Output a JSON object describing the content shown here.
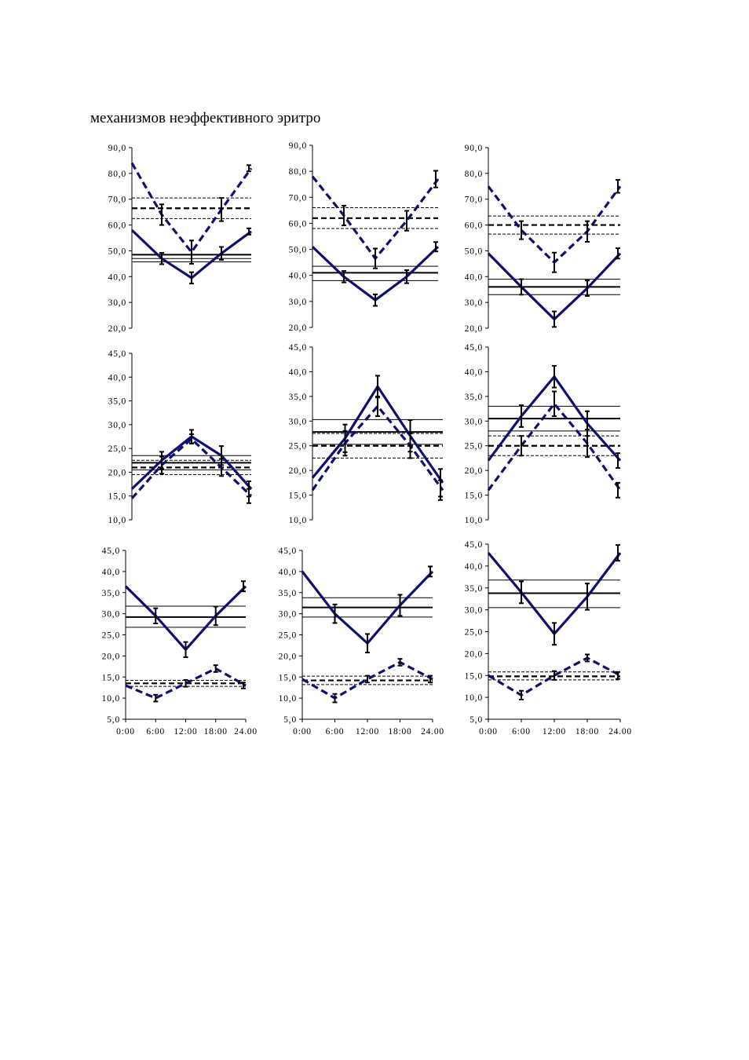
{
  "caption": "механизмов неэффективного эритро",
  "colors": {
    "series": "#0f0f6e",
    "reference": "#000000",
    "errorbar": "#000000"
  },
  "chart_data": [
    {
      "type": "line",
      "xlim": [
        0,
        24
      ],
      "ylim": [
        20,
        90
      ],
      "yticks": [
        "20,0",
        "30,0",
        "40,0",
        "50,0",
        "60,0",
        "70,0",
        "80,0",
        "90,0"
      ],
      "series": [
        {
          "style": "solid",
          "x": [
            0,
            6,
            12,
            18,
            24
          ],
          "values": [
            58,
            47,
            39.5,
            49,
            57.5
          ],
          "errors": [
            0,
            2.2,
            2.2,
            2.5,
            1.2
          ]
        },
        {
          "style": "dashed",
          "x": [
            0,
            6,
            12,
            18,
            24
          ],
          "values": [
            84,
            64,
            49.5,
            66,
            82
          ],
          "errors": [
            0,
            4,
            4.5,
            4.5,
            1.2
          ]
        }
      ],
      "reference": {
        "solid": [
          48.5,
          1.5,
          2.8
        ],
        "dashed": [
          66.5,
          62.5,
          70.5
        ]
      }
    },
    {
      "type": "line",
      "xlim": [
        0,
        24
      ],
      "ylim": [
        20,
        90
      ],
      "yticks": [
        "20,0",
        "30,0",
        "40,0",
        "50,0",
        "60,0",
        "70,0",
        "80,0",
        "90,0"
      ],
      "series": [
        {
          "style": "solid",
          "x": [
            0,
            6,
            12,
            18,
            24
          ],
          "values": [
            51,
            39.5,
            30.5,
            39.5,
            51
          ],
          "errors": [
            0,
            2.2,
            2.2,
            2.5,
            1.8
          ]
        },
        {
          "style": "dashed",
          "x": [
            0,
            6,
            12,
            18,
            24
          ],
          "values": [
            78,
            63,
            46.5,
            61,
            77
          ],
          "errors": [
            0,
            3.8,
            3.8,
            3.8,
            3.2
          ]
        }
      ],
      "reference": {
        "solid": [
          41,
          38,
          43.5
        ],
        "dashed": [
          62,
          58,
          66
        ]
      }
    },
    {
      "type": "line",
      "xlim": [
        0,
        24
      ],
      "ylim": [
        20,
        90
      ],
      "yticks": [
        "20,0",
        "30,0",
        "40,0",
        "50,0",
        "60,0",
        "70,0",
        "80,0",
        "90,0"
      ],
      "series": [
        {
          "style": "solid",
          "x": [
            0,
            6,
            12,
            18,
            24
          ],
          "values": [
            49,
            36,
            23.5,
            35.5,
            49
          ],
          "errors": [
            0,
            3,
            3,
            3,
            2
          ]
        },
        {
          "style": "dashed",
          "x": [
            0,
            6,
            12,
            18,
            24
          ],
          "values": [
            75,
            58,
            45.5,
            57.5,
            75
          ],
          "errors": [
            0,
            3.5,
            3.8,
            4,
            2.5
          ]
        }
      ],
      "reference": {
        "solid": [
          36,
          33,
          39
        ],
        "dashed": [
          60,
          56.5,
          63.5
        ]
      }
    },
    {
      "type": "line",
      "xlim": [
        0,
        24
      ],
      "ylim": [
        10,
        45
      ],
      "yticks": [
        "10,0",
        "15,0",
        "20,0",
        "25,0",
        "30,0",
        "35,0",
        "40,0",
        "45,0"
      ],
      "series": [
        {
          "style": "solid",
          "x": [
            0,
            6,
            12,
            18,
            24
          ],
          "values": [
            16.5,
            22.5,
            27.5,
            23.5,
            16.5
          ],
          "errors": [
            0,
            1.8,
            1.4,
            2,
            1.6
          ]
        },
        {
          "style": "dashed",
          "x": [
            0,
            6,
            12,
            18,
            24
          ],
          "values": [
            14.5,
            21.5,
            27,
            21,
            15
          ],
          "errors": [
            0,
            1.8,
            1,
            1.8,
            1.5
          ]
        }
      ],
      "reference": {
        "solid": [
          22,
          20.5,
          23.5
        ],
        "dashed": [
          21,
          19.5,
          22.5
        ]
      }
    },
    {
      "type": "line",
      "xlim": [
        0,
        24
      ],
      "ylim": [
        10,
        45
      ],
      "yticks": [
        "10,0",
        "15,0",
        "20,0",
        "25,0",
        "30,0",
        "35,0",
        "40,0",
        "45,0"
      ],
      "series": [
        {
          "style": "solid",
          "x": [
            0,
            6,
            12,
            18,
            24
          ],
          "values": [
            18.5,
            26.5,
            37,
            27,
            17.5
          ],
          "errors": [
            0,
            2.8,
            2.2,
            3.2,
            2.8
          ]
        },
        {
          "style": "dashed",
          "x": [
            0,
            6,
            12,
            18,
            24
          ],
          "values": [
            16,
            25.5,
            33,
            25,
            16
          ],
          "errors": [
            0,
            2.5,
            2,
            2.5,
            2
          ]
        }
      ],
      "reference": {
        "solid": [
          27.8,
          25.3,
          30.3
        ],
        "dashed": [
          25,
          22.5,
          27.5
        ]
      }
    },
    {
      "type": "line",
      "xlim": [
        0,
        24
      ],
      "ylim": [
        10,
        45
      ],
      "yticks": [
        "10,0",
        "15,0",
        "20,0",
        "25,0",
        "30,0",
        "35,0",
        "40,0",
        "45,0"
      ],
      "series": [
        {
          "style": "solid",
          "x": [
            0,
            6,
            12,
            18,
            24
          ],
          "values": [
            22,
            31,
            39,
            29.5,
            22
          ],
          "errors": [
            0,
            2.2,
            2.2,
            2.5,
            1.5
          ]
        },
        {
          "style": "dashed",
          "x": [
            0,
            6,
            12,
            18,
            24
          ],
          "values": [
            16,
            25,
            33.5,
            25.5,
            16
          ],
          "errors": [
            0,
            2,
            2.5,
            2.8,
            1.5
          ]
        }
      ],
      "reference": {
        "solid": [
          30.5,
          28,
          33
        ],
        "dashed": [
          25,
          23,
          27
        ]
      }
    },
    {
      "type": "line",
      "xlim": [
        0,
        24
      ],
      "ylim": [
        5,
        45
      ],
      "yticks": [
        "5,0",
        "10,0",
        "15,0",
        "20,0",
        "25,0",
        "30,0",
        "35,0",
        "40,0",
        "45,0"
      ],
      "xticks": [
        "0:00",
        "6:00",
        "12:00",
        "18:00",
        "24.00"
      ],
      "series": [
        {
          "style": "solid",
          "x": [
            0,
            6,
            12,
            18,
            24
          ],
          "values": [
            36.5,
            29.5,
            21.5,
            29.5,
            36.5
          ],
          "errors": [
            0,
            1.8,
            1.8,
            2.2,
            1.2
          ]
        },
        {
          "style": "dashed",
          "x": [
            0,
            6,
            12,
            18,
            24
          ],
          "values": [
            13,
            10,
            13.5,
            17,
            13
          ],
          "errors": [
            0,
            0.8,
            0.8,
            0.8,
            0.7
          ]
        }
      ],
      "reference": {
        "solid": [
          29.2,
          26.8,
          31.8
        ],
        "dashed": [
          13.5,
          12.8,
          14.2
        ]
      }
    },
    {
      "type": "line",
      "xlim": [
        0,
        24
      ],
      "ylim": [
        5,
        45
      ],
      "yticks": [
        "5,0",
        "10,0",
        "15,0",
        "20,0",
        "25,0",
        "30,0",
        "35,0",
        "40,0",
        "45,0"
      ],
      "xticks": [
        "0:00",
        "6:00",
        "12:00",
        "18:00",
        "24.00"
      ],
      "series": [
        {
          "style": "solid",
          "x": [
            0,
            6,
            12,
            18,
            24
          ],
          "values": [
            40,
            30,
            23,
            32,
            40
          ],
          "errors": [
            0,
            2.2,
            2.2,
            2.5,
            1.2
          ]
        },
        {
          "style": "dashed",
          "x": [
            0,
            6,
            12,
            18,
            24
          ],
          "values": [
            14.5,
            10,
            14.5,
            18.5,
            14.5
          ],
          "errors": [
            0,
            1,
            0.8,
            0.8,
            0.8
          ]
        }
      ],
      "reference": {
        "solid": [
          31.5,
          29.2,
          33.8
        ],
        "dashed": [
          14.2,
          13.2,
          15.2
        ]
      }
    },
    {
      "type": "line",
      "xlim": [
        0,
        24
      ],
      "ylim": [
        5,
        45
      ],
      "yticks": [
        "5,0",
        "10,0",
        "15,0",
        "20,0",
        "25,0",
        "30,0",
        "35,0",
        "40,0",
        "45,0"
      ],
      "xticks": [
        "0:00",
        "6:00",
        "12:00",
        "18:00",
        "24.00"
      ],
      "series": [
        {
          "style": "solid",
          "x": [
            0,
            6,
            12,
            18,
            24
          ],
          "values": [
            43,
            34,
            24.5,
            33,
            43
          ],
          "errors": [
            0,
            2.5,
            2.5,
            3,
            1.8
          ]
        },
        {
          "style": "dashed",
          "x": [
            0,
            6,
            12,
            18,
            24
          ],
          "values": [
            15,
            10.5,
            15,
            19,
            15
          ],
          "errors": [
            0,
            1,
            1,
            0.8,
            0.8
          ]
        }
      ],
      "reference": {
        "solid": [
          33.8,
          30.5,
          36.8
        ],
        "dashed": [
          14.8,
          14,
          15.8
        ]
      }
    }
  ]
}
